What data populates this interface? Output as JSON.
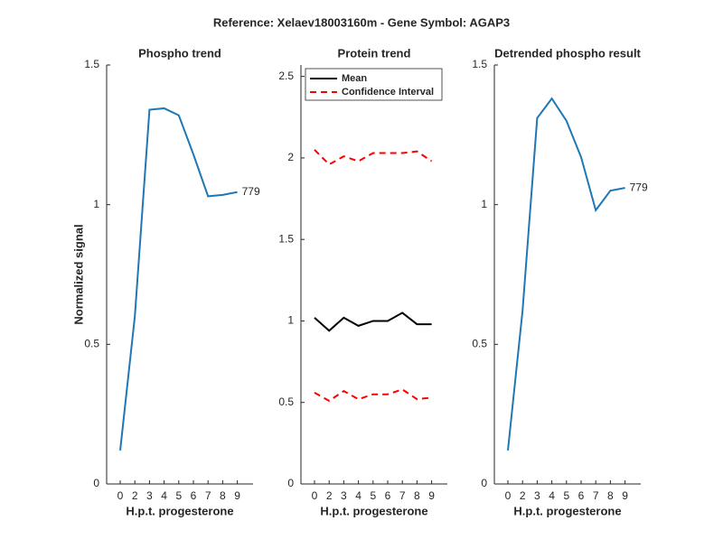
{
  "title": "Reference:  Xelaev18003160m - Gene Symbol:  AGAP3",
  "chart_data": [
    {
      "type": "line",
      "title": "Phospho trend",
      "xlabel": "H.p.t. progesterone",
      "ylabel": "Normalized signal",
      "categories": [
        "0",
        "2",
        "3",
        "4",
        "5",
        "6",
        "7",
        "8",
        "9"
      ],
      "series": [
        {
          "color": "#1f77b4",
          "values": [
            0.12,
            0.6,
            1.34,
            1.345,
            1.32,
            1.18,
            1.03,
            1.035,
            1.045
          ]
        }
      ],
      "end_label": "779",
      "ylim": [
        0,
        1.5
      ],
      "yticks": [
        0,
        0.5,
        1,
        1.5
      ]
    },
    {
      "type": "band_line",
      "title": "Protein trend",
      "xlabel": "H.p.t. progesterone",
      "categories": [
        "0",
        "2",
        "3",
        "4",
        "5",
        "6",
        "7",
        "8",
        "9"
      ],
      "series": [
        {
          "name": "Mean",
          "color": "#000000",
          "values": [
            1.02,
            0.94,
            1.02,
            0.97,
            1.0,
            1.0,
            1.05,
            0.98,
            0.98
          ]
        },
        {
          "name": "Confidence Interval",
          "color": "#ff0000",
          "dashed": true,
          "upper": [
            2.05,
            1.96,
            2.01,
            1.98,
            2.03,
            2.03,
            2.03,
            2.04,
            1.98
          ],
          "lower": [
            0.56,
            0.51,
            0.57,
            0.52,
            0.55,
            0.55,
            0.58,
            0.52,
            0.53
          ]
        }
      ],
      "legend": "upper left",
      "ylim": [
        0,
        2.57
      ],
      "yticks": [
        0,
        0.5,
        1,
        1.5,
        2,
        2.5
      ]
    },
    {
      "type": "line",
      "title": "Detrended phospho result",
      "xlabel": "H.p.t. progesterone",
      "categories": [
        "0",
        "2",
        "3",
        "4",
        "5",
        "6",
        "7",
        "8",
        "9"
      ],
      "series": [
        {
          "color": "#1f77b4",
          "values": [
            0.12,
            0.62,
            1.31,
            1.38,
            1.3,
            1.17,
            0.98,
            1.05,
            1.06
          ]
        }
      ],
      "end_label": "779",
      "ylim": [
        0,
        1.5
      ],
      "yticks": [
        0,
        0.5,
        1,
        1.5
      ]
    }
  ]
}
